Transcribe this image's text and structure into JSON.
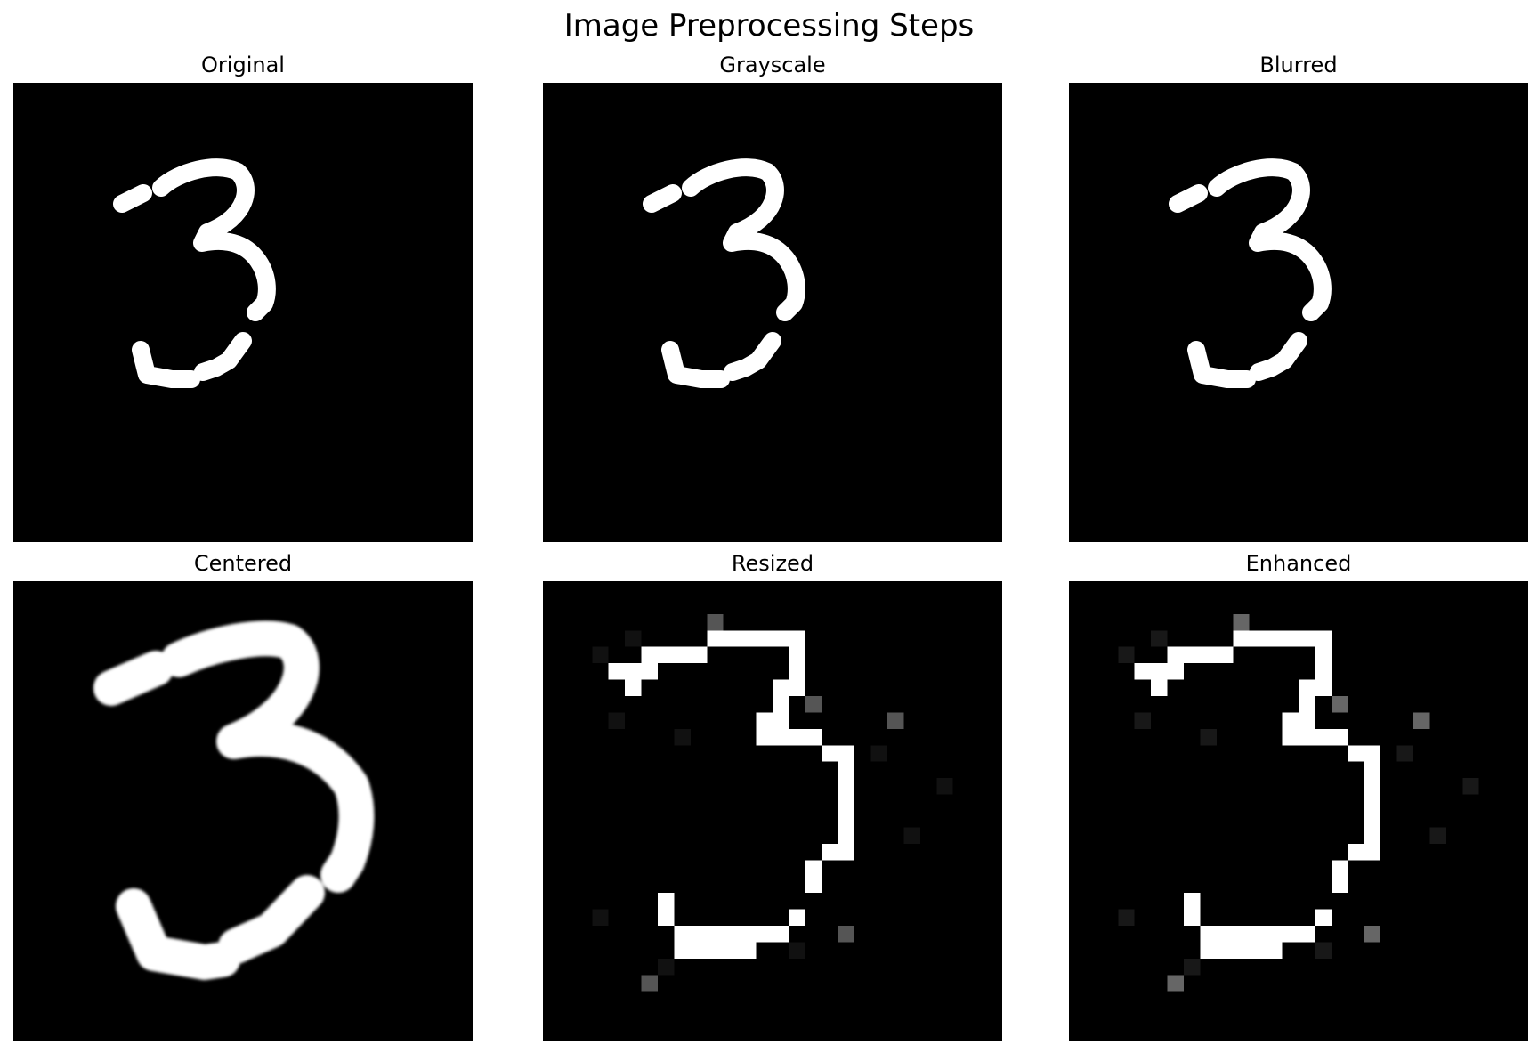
{
  "figure": {
    "title": "Image Preprocessing Steps"
  },
  "panels": [
    {
      "title": "Original"
    },
    {
      "title": "Grayscale"
    },
    {
      "title": "Blurred"
    },
    {
      "title": "Centered"
    },
    {
      "title": "Resized"
    },
    {
      "title": "Enhanced"
    }
  ],
  "colors": {
    "background": "#000000",
    "digit_stroke": "#ffffff"
  }
}
